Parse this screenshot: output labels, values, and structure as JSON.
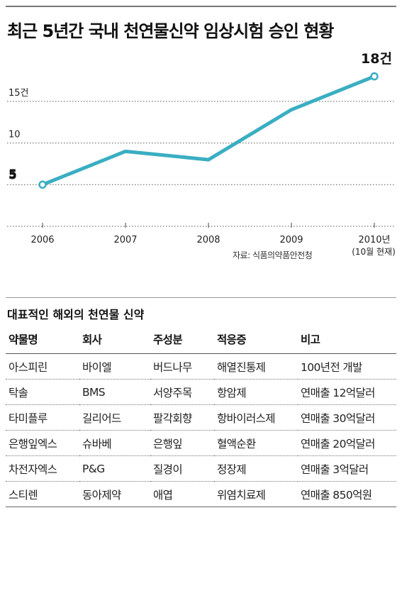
{
  "title": "최근 5년간 국내 천연물신약 임상시험 승인 현황",
  "source": "자료: 식품의약품안전청",
  "chart_data": {
    "type": "line",
    "title": "최근 5년간 국내 천연물신약 임상시험 승인 현황",
    "x": [
      "2006",
      "2007",
      "2008",
      "2009",
      "2010년"
    ],
    "x_sublabels": [
      "",
      "",
      "",
      "",
      "(10월 현재)"
    ],
    "values": [
      5,
      9,
      8,
      14,
      18
    ],
    "point_labels": [
      "5",
      "",
      "",
      "",
      "18건"
    ],
    "y_ticks": [
      {
        "value": 5,
        "label": "5"
      },
      {
        "value": 10,
        "label": "10"
      },
      {
        "value": 15,
        "label": "15건"
      }
    ],
    "ylim": [
      0,
      20
    ],
    "grid": "dotted horizontal",
    "color": "#3aaec2"
  },
  "table": {
    "title": "대표적인 해외의 천연물 신약",
    "columns": [
      "약물명",
      "회사",
      "주성분",
      "적응증",
      "비고"
    ],
    "rows": [
      [
        "아스피린",
        "바이엘",
        "버드나무",
        "해열진통제",
        "100년전 개발"
      ],
      [
        "탁솔",
        "BMS",
        "서양주목",
        "항암제",
        "연매출 12억달러"
      ],
      [
        "타미플루",
        "길리어드",
        "팔각회향",
        "항바이러스제",
        "연매출 30억달러"
      ],
      [
        "은행잎엑스",
        "슈바베",
        "은행잎",
        "혈액순환",
        "연매출 20억달러"
      ],
      [
        "차전자엑스",
        "P&G",
        "질경이",
        "정장제",
        "연매출 3억달러"
      ],
      [
        "스티렌",
        "동아제약",
        "애엽",
        "위염치료제",
        "연매출 850억원"
      ]
    ]
  }
}
